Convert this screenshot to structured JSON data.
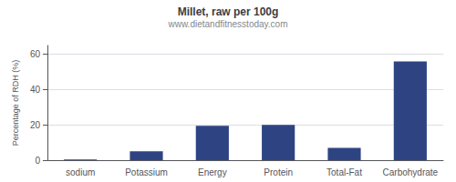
{
  "chart_data": {
    "type": "bar",
    "title": "Millet, raw per 100g",
    "subtitle": "www.dietandfitnesstoday.com",
    "categories": [
      "sodium",
      "Potassium",
      "Energy",
      "Protein",
      "Total-Fat",
      "Carbohydrate"
    ],
    "values": [
      0.4,
      5.0,
      19.5,
      20.0,
      7.0,
      56.0
    ],
    "color": "#2e4482",
    "ylabel": "Percentage of RDH (%)",
    "ylim": [
      0,
      65
    ],
    "yticks": [
      0,
      20,
      40,
      60
    ],
    "grid": true
  }
}
